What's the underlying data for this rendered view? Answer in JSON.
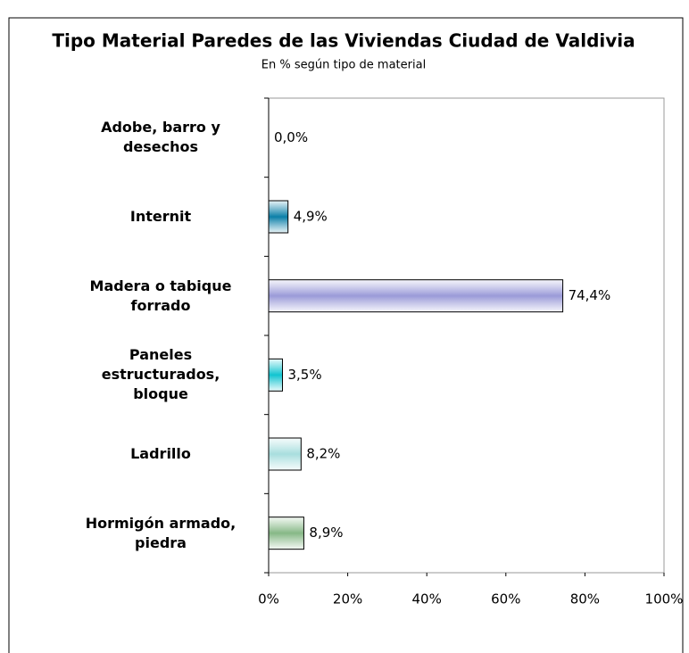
{
  "chart_data": {
    "type": "hbar",
    "title": "Tipo Material Paredes de las Viviendas Ciudad de Valdivia",
    "subtitle": "En % según tipo de material",
    "categories": [
      "Adobe, barro y desechos",
      "Internit",
      "Madera o tabique forrado",
      "Paneles estructurados, bloque",
      "Ladrillo",
      "Hormigón armado, piedra"
    ],
    "values": [
      0,
      4.9,
      74.4,
      3.5,
      8.2,
      8.9
    ],
    "value_labels": [
      "0,0%",
      "4,9%",
      "74,4%",
      "3,5%",
      "8,2%",
      "8,9%"
    ],
    "colors": [
      "#888888",
      "#0b7fa8",
      "#9a9ad8",
      "#10c4d0",
      "#a8dede",
      "#86b886"
    ],
    "xlim": [
      0,
      100
    ],
    "xticks": [
      {
        "value": 0,
        "label": "0%"
      },
      {
        "value": 20,
        "label": "20%"
      },
      {
        "value": 40,
        "label": "40%"
      },
      {
        "value": 60,
        "label": "60%"
      },
      {
        "value": 80,
        "label": "80%"
      },
      {
        "value": 100,
        "label": "100%"
      }
    ]
  }
}
